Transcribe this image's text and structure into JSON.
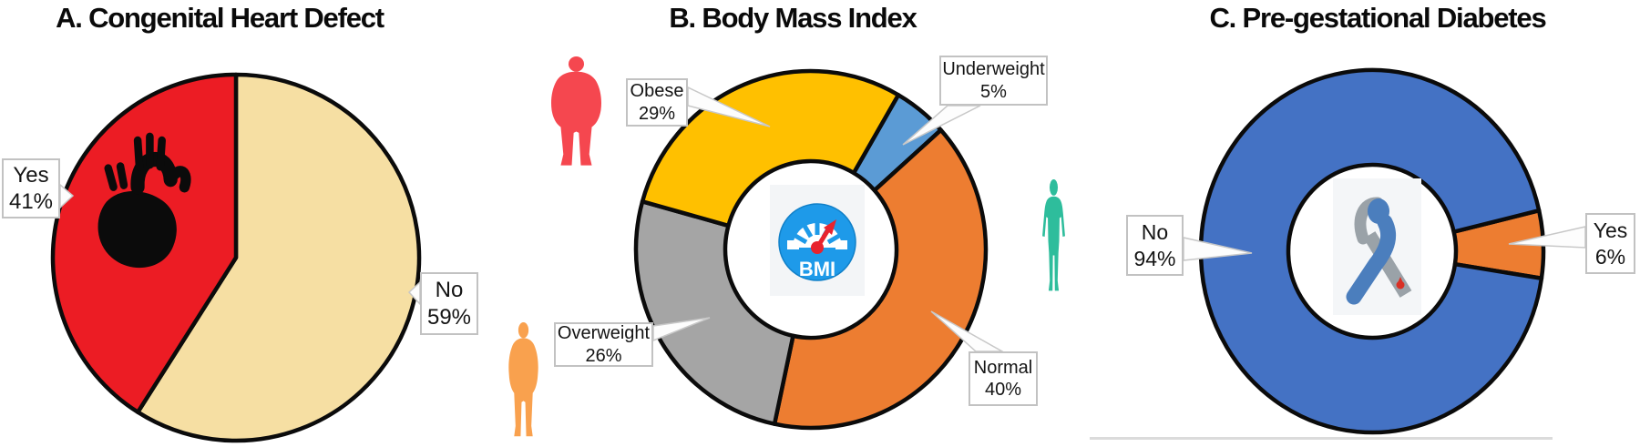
{
  "panels": [
    {
      "key": "A",
      "title": "A. Congenital Heart Defect",
      "chart_type": "pie",
      "center_icon": "anatomical-heart-icon",
      "slices": [
        {
          "label": "No",
          "value_pct": 59,
          "color": "#F6DFA3"
        },
        {
          "label": "Yes",
          "value_pct": 41,
          "color": "#EC1C24"
        }
      ],
      "callouts": [
        {
          "id": "a-yes",
          "label": "Yes",
          "value": "41%"
        },
        {
          "id": "a-no",
          "label": "No",
          "value": "59%"
        }
      ]
    },
    {
      "key": "B",
      "title": "B. Body Mass Index",
      "chart_type": "donut",
      "center_icon": "bmi-gauge-icon",
      "center_icon_text": "BMI",
      "slices": [
        {
          "label": "Underweight",
          "value_pct": 5,
          "color": "#5B9BD5"
        },
        {
          "label": "Normal",
          "value_pct": 40,
          "color": "#ED7D31"
        },
        {
          "label": "Overweight",
          "value_pct": 26,
          "color": "#A5A5A5"
        },
        {
          "label": "Obese",
          "value_pct": 29,
          "color": "#FFC000"
        }
      ],
      "callouts": [
        {
          "id": "b-obese",
          "label": "Obese",
          "value": "29%"
        },
        {
          "id": "b-under",
          "label": "Underweight",
          "value": "5%"
        },
        {
          "id": "b-over",
          "label": "Overweight",
          "value": "26%"
        },
        {
          "id": "b-normal",
          "label": "Normal",
          "value": "40%"
        }
      ],
      "side_figures": [
        {
          "name": "obese-figure",
          "color": "#F5474F"
        },
        {
          "name": "normal-figure",
          "color": "#2EBD9C"
        },
        {
          "name": "overweight-figure",
          "color": "#F9A14E"
        }
      ]
    },
    {
      "key": "C",
      "title": "C. Pre-gestational Diabetes",
      "chart_type": "donut",
      "center_icon": "diabetes-ribbon-icon",
      "slices": [
        {
          "label": "Yes",
          "value_pct": 6,
          "color": "#ED7D31"
        },
        {
          "label": "No",
          "value_pct": 94,
          "color": "#4472C4"
        }
      ],
      "callouts": [
        {
          "id": "c-no",
          "label": "No",
          "value": "94%"
        },
        {
          "id": "c-yes",
          "label": "Yes",
          "value": "6%"
        }
      ]
    }
  ],
  "chart_data": [
    {
      "type": "pie",
      "title": "A. Congenital Heart Defect",
      "categories": [
        "Yes",
        "No"
      ],
      "values": [
        41,
        59
      ],
      "unit": "%",
      "colors": [
        "#EC1C24",
        "#F6DFA3"
      ],
      "legend_position": "callout-labels",
      "center_icon": "anatomical heart"
    },
    {
      "type": "pie",
      "subtype": "donut",
      "title": "B. Body Mass Index",
      "categories": [
        "Underweight",
        "Normal",
        "Overweight",
        "Obese"
      ],
      "values": [
        5,
        40,
        26,
        29
      ],
      "unit": "%",
      "colors": [
        "#5B9BD5",
        "#ED7D31",
        "#A5A5A5",
        "#FFC000"
      ],
      "legend_position": "callout-labels",
      "center_icon": "BMI gauge"
    },
    {
      "type": "pie",
      "subtype": "donut",
      "title": "C. Pre-gestational Diabetes",
      "categories": [
        "Yes",
        "No"
      ],
      "values": [
        6,
        94
      ],
      "unit": "%",
      "colors": [
        "#ED7D31",
        "#4472C4"
      ],
      "legend_position": "callout-labels",
      "center_icon": "diabetes awareness ribbon"
    }
  ],
  "palette": {
    "outline": "#0B0B0B",
    "label_box_border": "#C2C2C2",
    "leader_fill": "#FDFDFD",
    "leader_stroke": "#C8C8C8",
    "bmi_icon_blue": "#1E9AE9",
    "needle_red": "#E8232E",
    "ribbon_blue": "#4B7EBD",
    "ribbon_gray": "#9AA2A8",
    "drop_red": "#D93025"
  }
}
